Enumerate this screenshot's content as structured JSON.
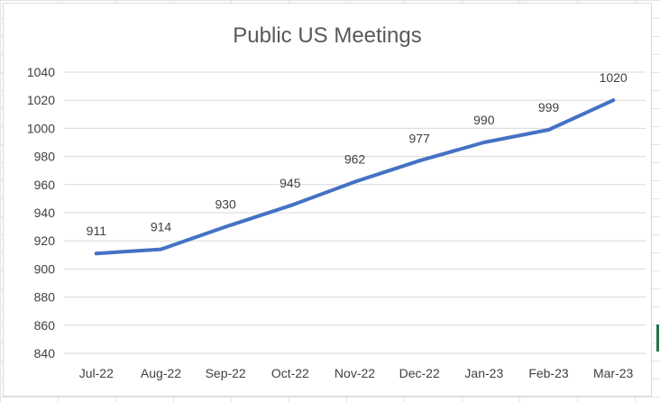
{
  "chart_data": {
    "type": "line",
    "title": "Public US Meetings",
    "xlabel": "",
    "ylabel": "",
    "categories": [
      "Jul-22",
      "Aug-22",
      "Sep-22",
      "Oct-22",
      "Nov-22",
      "Dec-22",
      "Jan-23",
      "Feb-23",
      "Mar-23"
    ],
    "series": [
      {
        "values": [
          911,
          914,
          930,
          945,
          962,
          977,
          990,
          999,
          1020
        ]
      }
    ],
    "ylim": [
      840,
      1040
    ],
    "yticks": [
      840,
      860,
      880,
      900,
      920,
      940,
      960,
      980,
      1000,
      1020,
      1040
    ],
    "grid": true,
    "legend": "none",
    "data_labels": true,
    "colors": {
      "line": "#4472C4",
      "grid": "#d9d9d9",
      "text": "#404040",
      "title": "#595959"
    }
  }
}
